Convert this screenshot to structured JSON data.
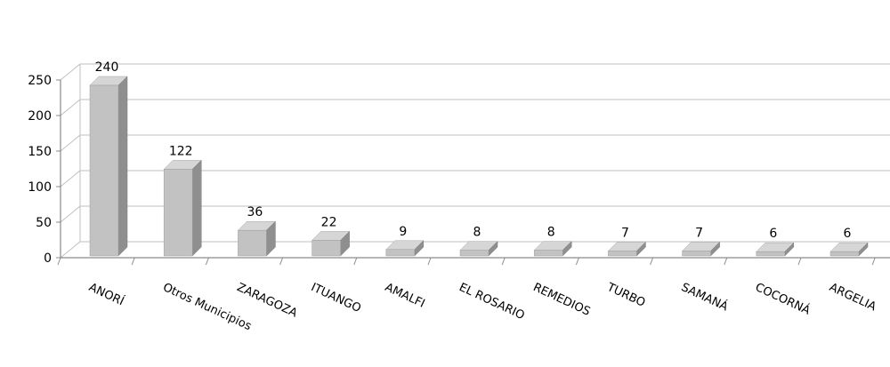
{
  "chart_data": {
    "type": "bar",
    "categories": [
      "ANORÍ",
      "Otros Municipios",
      "ZARAGOZA",
      "ITUANGO",
      "AMALFI",
      "EL ROSARIO",
      "REMEDIOS",
      "TURBO",
      "SAMANÁ",
      "COCORNÁ",
      "ARGELIA"
    ],
    "values": [
      240,
      122,
      36,
      22,
      9,
      8,
      8,
      7,
      7,
      6,
      6
    ],
    "data_labels": [
      "240",
      "122",
      "36",
      "22",
      "9",
      "8",
      "8",
      "7",
      "7",
      "6",
      "6"
    ],
    "y_ticks": [
      "0",
      "50",
      "100",
      "150",
      "200",
      "250"
    ],
    "ylim": [
      0,
      250
    ],
    "grid": true,
    "style": "3d-column",
    "colors": {
      "bar_front": "#c2c2c2",
      "bar_top": "#d6d6d6",
      "bar_side": "#8f8f8f",
      "grid": "#bfbfbf",
      "axis": "#8a8a8a"
    }
  }
}
